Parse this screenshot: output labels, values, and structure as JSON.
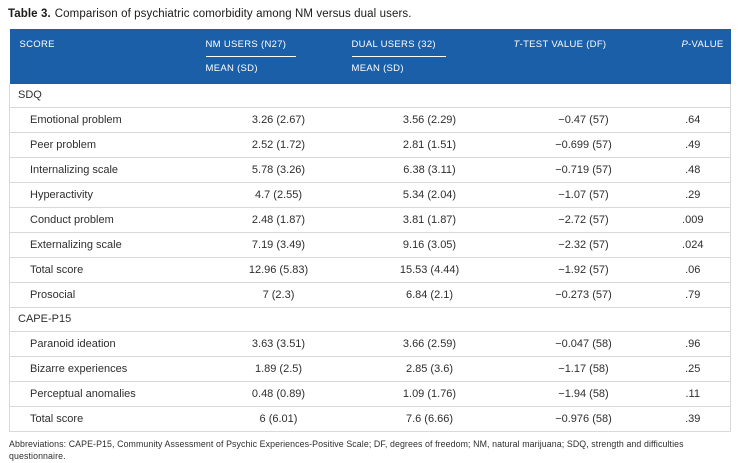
{
  "caption": {
    "label": "Table 3.",
    "text": "Comparison of psychiatric comorbidity among NM versus dual users."
  },
  "table": {
    "header": {
      "score": "SCORE",
      "nm_users": "NM USERS (N27)",
      "dual_users": "DUAL USERS (32)",
      "mean_sd": "MEAN (SD)",
      "t_test": {
        "prefix": "T",
        "rest": "-TEST VALUE (DF)"
      },
      "p_value": {
        "prefix": "P",
        "rest": "-VALUE"
      }
    },
    "sections": [
      {
        "name": "SDQ",
        "rows": [
          {
            "label": "Emotional problem",
            "nm": "3.26 (2.67)",
            "dual": "3.56 (2.29)",
            "t": "−0.47 (57)",
            "p": ".64"
          },
          {
            "label": "Peer problem",
            "nm": "2.52 (1.72)",
            "dual": "2.81 (1.51)",
            "t": "−0.699 (57)",
            "p": ".49"
          },
          {
            "label": "Internalizing scale",
            "nm": "5.78 (3.26)",
            "dual": "6.38 (3.11)",
            "t": "−0.719 (57)",
            "p": ".48"
          },
          {
            "label": "Hyperactivity",
            "nm": "4.7 (2.55)",
            "dual": "5.34 (2.04)",
            "t": "−1.07 (57)",
            "p": ".29"
          },
          {
            "label": "Conduct problem",
            "nm": "2.48 (1.87)",
            "dual": "3.81 (1.87)",
            "t": "−2.72 (57)",
            "p": ".009"
          },
          {
            "label": "Externalizing scale",
            "nm": "7.19 (3.49)",
            "dual": "9.16 (3.05)",
            "t": "−2.32 (57)",
            "p": ".024"
          },
          {
            "label": "Total score",
            "nm": "12.96 (5.83)",
            "dual": "15.53 (4.44)",
            "t": "−1.92 (57)",
            "p": ".06"
          },
          {
            "label": "Prosocial",
            "nm": "7 (2.3)",
            "dual": "6.84 (2.1)",
            "t": "−0.273 (57)",
            "p": ".79"
          }
        ]
      },
      {
        "name": "CAPE-P15",
        "rows": [
          {
            "label": "Paranoid ideation",
            "nm": "3.63 (3.51)",
            "dual": "3.66 (2.59)",
            "t": "−0.047 (58)",
            "p": ".96"
          },
          {
            "label": "Bizarre experiences",
            "nm": "1.89 (2.5)",
            "dual": "2.85 (3.6)",
            "t": "−1.17 (58)",
            "p": ".25"
          },
          {
            "label": "Perceptual anomalies",
            "nm": "0.48 (0.89)",
            "dual": "1.09 (1.76)",
            "t": "−1.94 (58)",
            "p": ".11"
          },
          {
            "label": "Total score",
            "nm": "6 (6.01)",
            "dual": "7.6 (6.66)",
            "t": "−0.976 (58)",
            "p": ".39"
          }
        ]
      }
    ]
  },
  "footnote": "Abbreviations: CAPE-P15, Community Assessment of Psychic Experiences-Positive Scale; DF, degrees of freedom; NM, natural marijuana; SDQ, strength and difficulties questionnaire.",
  "colors": {
    "header_blue": "#1a5fa8",
    "row_line": "#d9d9d9",
    "text": "#2e2e2e"
  }
}
